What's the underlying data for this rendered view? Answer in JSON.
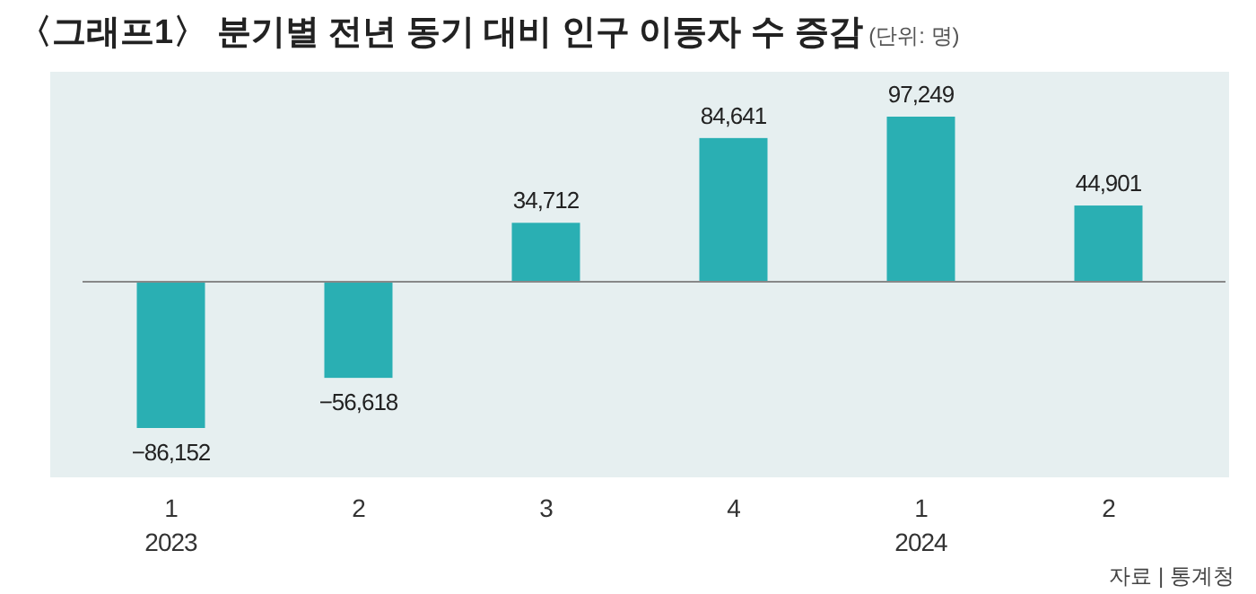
{
  "chart_data": {
    "type": "bar",
    "title": "〈그래프1〉 분기별 전년 동기 대비 인구 이동자 수 증감",
    "subtitle": "(단위: 명)",
    "categories": [
      "1\n2023",
      "2",
      "3",
      "4",
      "1\n2024",
      "2"
    ],
    "values": [
      -86152,
      -56618,
      34712,
      84641,
      97249,
      44901
    ],
    "value_labels": [
      "−86,152",
      "−56,618",
      "34,712",
      "84,641",
      "97,249",
      "44,901"
    ],
    "color": "#2aafb3",
    "annotations": [
      "자료 | 통계청"
    ]
  }
}
